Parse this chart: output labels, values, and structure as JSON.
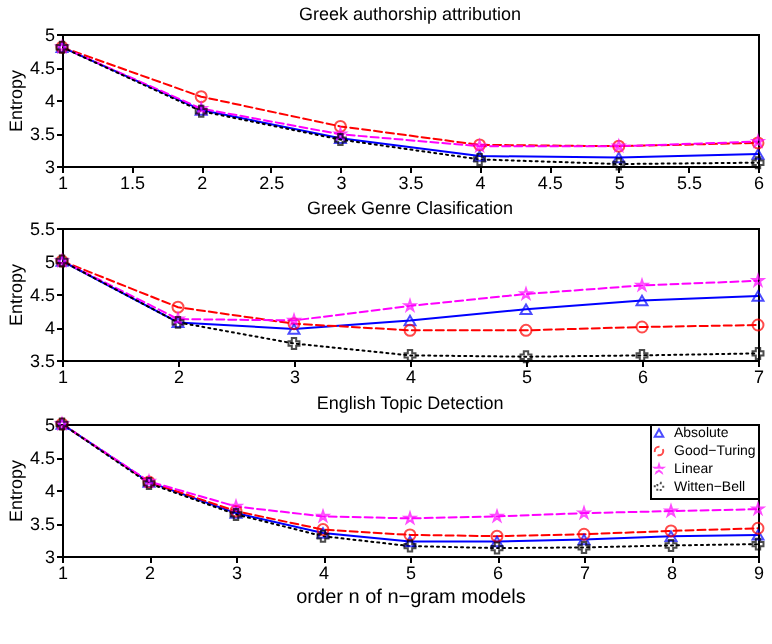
{
  "chart_data": [
    {
      "type": "line",
      "title": "Greek authorship attribution",
      "ylabel": "Entropy",
      "x": [
        1,
        2,
        3,
        4,
        5,
        6
      ],
      "xlim": [
        1,
        6
      ],
      "xticks": [
        1,
        1.5,
        2,
        2.5,
        3,
        3.5,
        4,
        4.5,
        5,
        5.5,
        6
      ],
      "ylim": [
        3,
        5
      ],
      "yticks": [
        3,
        3.5,
        4,
        4.5,
        5
      ],
      "grid": false,
      "legend": false,
      "series": [
        {
          "color": "#0000ff",
          "marker": "triangle",
          "line_style": "solid",
          "values": [
            4.8,
            3.85,
            3.42,
            3.15,
            3.13,
            3.18
          ]
        },
        {
          "color": "#ff0000",
          "marker": "circle",
          "line_style": "dashed",
          "values": [
            4.8,
            4.05,
            3.6,
            3.32,
            3.3,
            3.35
          ]
        },
        {
          "color": "#ff00ff",
          "marker": "star",
          "line_style": "dashed",
          "values": [
            4.8,
            3.87,
            3.48,
            3.3,
            3.3,
            3.37
          ]
        },
        {
          "color": "#000000",
          "marker": "cross",
          "line_style": "dotted",
          "values": [
            4.8,
            3.83,
            3.4,
            3.1,
            3.03,
            3.05
          ]
        }
      ]
    },
    {
      "type": "line",
      "title": "Greek Genre Clasification",
      "ylabel": "Entropy",
      "x": [
        1,
        2,
        3,
        4,
        5,
        6,
        7
      ],
      "xlim": [
        1,
        7
      ],
      "xticks": [
        1,
        2,
        3,
        4,
        5,
        6,
        7
      ],
      "ylim": [
        3.5,
        5.5
      ],
      "yticks": [
        3.5,
        4,
        4.5,
        5,
        5.5
      ],
      "grid": false,
      "legend": false,
      "series": [
        {
          "color": "#0000ff",
          "marker": "triangle",
          "line_style": "solid",
          "values": [
            5.0,
            4.07,
            3.97,
            4.1,
            4.27,
            4.4,
            4.47
          ]
        },
        {
          "color": "#ff0000",
          "marker": "circle",
          "line_style": "dashed",
          "values": [
            5.0,
            4.3,
            4.05,
            3.95,
            3.95,
            4.0,
            4.03
          ]
        },
        {
          "color": "#ff00ff",
          "marker": "star",
          "line_style": "dashed",
          "values": [
            5.0,
            4.12,
            4.1,
            4.32,
            4.5,
            4.63,
            4.7
          ]
        },
        {
          "color": "#000000",
          "marker": "cross",
          "line_style": "dotted",
          "values": [
            5.0,
            4.07,
            3.75,
            3.57,
            3.55,
            3.57,
            3.6
          ]
        }
      ]
    },
    {
      "type": "line",
      "title": "English Topic Detection",
      "xlabel": "order n of n−gram models",
      "ylabel": "Entropy",
      "x": [
        1,
        2,
        3,
        4,
        5,
        6,
        7,
        8,
        9
      ],
      "xlim": [
        1,
        9
      ],
      "xticks": [
        1,
        2,
        3,
        4,
        5,
        6,
        7,
        8,
        9
      ],
      "ylim": [
        3,
        5
      ],
      "yticks": [
        3,
        3.5,
        4,
        4.5,
        5
      ],
      "grid": false,
      "legend": "top right",
      "series": [
        {
          "name": "Absolute",
          "color": "#0000ff",
          "marker": "triangle",
          "line_style": "solid",
          "values": [
            5.0,
            4.12,
            3.65,
            3.35,
            3.22,
            3.22,
            3.25,
            3.3,
            3.32
          ]
        },
        {
          "name": "Good−Turing",
          "color": "#ff0000",
          "marker": "circle",
          "line_style": "dashed",
          "values": [
            5.0,
            4.12,
            3.68,
            3.4,
            3.32,
            3.3,
            3.33,
            3.38,
            3.42
          ]
        },
        {
          "name": "Linear",
          "color": "#ff00ff",
          "marker": "star",
          "line_style": "dashed",
          "values": [
            5.0,
            4.13,
            3.75,
            3.6,
            3.57,
            3.6,
            3.65,
            3.68,
            3.71
          ]
        },
        {
          "name": "Witten−Bell",
          "color": "#000000",
          "marker": "cross",
          "line_style": "dotted",
          "values": [
            5.0,
            4.1,
            3.63,
            3.3,
            3.15,
            3.12,
            3.13,
            3.16,
            3.18
          ]
        }
      ]
    }
  ]
}
